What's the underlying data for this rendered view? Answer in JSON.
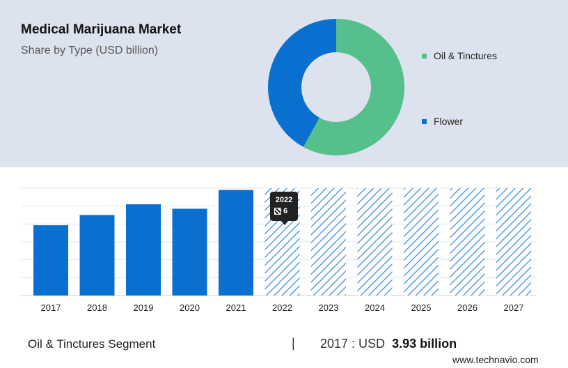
{
  "header": {
    "title": "Medical Marijuana Market",
    "subtitle": "Share by Type (USD billion)"
  },
  "chart_data": [
    {
      "type": "pie",
      "variant": "donut",
      "labels": [
        "Oil & Tinctures",
        "Flower"
      ],
      "values": [
        58,
        42
      ],
      "colors": [
        "#55c08c",
        "#0a70cf"
      ],
      "legend_position": "right"
    },
    {
      "type": "bar",
      "categories": [
        "2017",
        "2018",
        "2019",
        "2020",
        "2021",
        "2022",
        "2023",
        "2024",
        "2025",
        "2026",
        "2027"
      ],
      "values": [
        3.93,
        4.5,
        5.1,
        4.85,
        5.9,
        null,
        null,
        null,
        null,
        null,
        null
      ],
      "forecast_categories": [
        "2022",
        "2023",
        "2024",
        "2025",
        "2026",
        "2027"
      ],
      "ylim": [
        0,
        6
      ],
      "grid": true,
      "bar_color": "#0a70cf",
      "forecast_style": "hatched"
    }
  ],
  "tooltip": {
    "year": "2022",
    "value": "6"
  },
  "footer": {
    "segment": "Oil & Tinctures Segment",
    "separator": "|",
    "year_prefix": "2017 : USD",
    "value": "3.93 billion"
  },
  "brand": "www.technavio.com"
}
